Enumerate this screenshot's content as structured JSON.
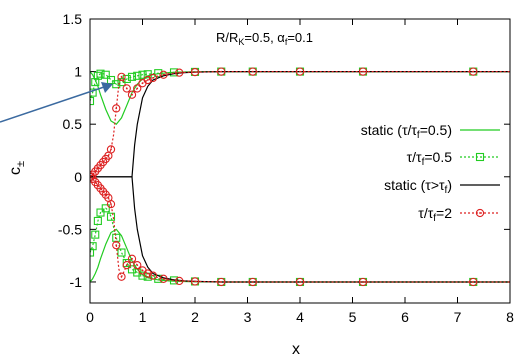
{
  "chart_data": {
    "type": "line",
    "xlabel": "x",
    "ylabel_main": "c",
    "ylabel_sub": "±",
    "xlim": [
      0,
      8
    ],
    "ylim": [
      -1.2,
      1.5
    ],
    "x_ticks": [
      "0",
      "1",
      "2",
      "3",
      "4",
      "5",
      "6",
      "7",
      "8"
    ],
    "y_ticks": [
      "1.5",
      "1",
      "0.5",
      "0",
      "-0.5",
      "-1"
    ],
    "annotation": {
      "prefix": "R/R",
      "sub1": "K",
      "mid": "=0.5, α",
      "sub2": "f",
      "suffix": "=0.1"
    },
    "legend": [
      {
        "main": "static (τ/τ",
        "sub": "f",
        "tail": "=0.5)",
        "color": "#22cc22",
        "style": "solid",
        "marker": "none"
      },
      {
        "main": "τ/τ",
        "sub": "f",
        "tail": "=0.5",
        "color": "#22cc22",
        "style": "dotted",
        "marker": "square"
      },
      {
        "main": "static (τ>τ",
        "sub": "f",
        "tail": ")",
        "color": "#000000",
        "style": "solid",
        "marker": "none"
      },
      {
        "main": "τ/τ",
        "sub": "f",
        "tail": "=2",
        "color": "#dd2222",
        "style": "dotted",
        "marker": "circle"
      }
    ],
    "series": [
      {
        "name": "static (τ/τf=0.5)",
        "color": "#22cc22",
        "x": [
          0,
          0.05,
          0.1,
          0.15,
          0.2,
          0.3,
          0.4,
          0.5,
          0.6,
          0.7,
          0.8,
          0.9,
          1.0,
          1.1,
          1.2,
          1.3,
          1.4,
          1.5,
          1.7,
          2.0,
          2.5,
          3.0,
          4.0,
          5.0,
          6.0,
          7.0,
          8.0
        ],
        "y_upper": [
          1.0,
          0.97,
          0.92,
          0.86,
          0.78,
          0.64,
          0.53,
          0.5,
          0.56,
          0.68,
          0.8,
          0.88,
          0.93,
          0.96,
          0.97,
          0.98,
          0.985,
          0.99,
          0.995,
          0.998,
          1.0,
          1.0,
          1.0,
          1.0,
          1.0,
          1.0,
          1.0
        ],
        "y_lower": [
          -1.0,
          -0.97,
          -0.92,
          -0.86,
          -0.78,
          -0.64,
          -0.53,
          -0.5,
          -0.56,
          -0.68,
          -0.8,
          -0.88,
          -0.93,
          -0.96,
          -0.97,
          -0.98,
          -0.985,
          -0.99,
          -0.995,
          -0.998,
          -1.0,
          -1.0,
          -1.0,
          -1.0,
          -1.0,
          -1.0,
          -1.0
        ]
      },
      {
        "name": "τ/τf=0.5",
        "color": "#22cc22",
        "x": [
          0,
          0.05,
          0.1,
          0.15,
          0.2,
          0.25,
          0.3,
          0.35,
          0.4,
          0.5,
          0.6,
          0.7,
          0.8,
          0.9,
          1.0,
          1.1,
          1.2,
          1.3,
          1.5,
          1.7,
          2.0,
          2.5,
          3.0,
          3.5,
          4.0,
          5.0,
          6.0,
          7.0,
          8.0
        ],
        "y_upper": [
          0.72,
          0.8,
          0.9,
          0.96,
          0.98,
          0.98,
          0.97,
          0.95,
          0.92,
          0.88,
          0.9,
          0.93,
          0.95,
          0.96,
          0.97,
          0.975,
          0.98,
          0.985,
          0.99,
          0.995,
          0.997,
          1.0,
          1.0,
          1.0,
          1.0,
          1.0,
          1.0,
          1.0,
          1.0
        ],
        "y_lower": [
          -0.72,
          -0.66,
          -0.55,
          -0.42,
          -0.34,
          -0.32,
          -0.3,
          -0.32,
          -0.38,
          -0.58,
          -0.72,
          -0.82,
          -0.88,
          -0.91,
          -0.94,
          -0.95,
          -0.96,
          -0.97,
          -0.98,
          -0.99,
          -0.995,
          -1.0,
          -1.0,
          -1.0,
          -1.0,
          -1.0,
          -1.0,
          -1.0,
          -1.0
        ],
        "marker_x": [
          0.0,
          0.05,
          0.1,
          0.15,
          0.2,
          0.3,
          0.4,
          0.5,
          0.6,
          0.7,
          0.8,
          0.9,
          1.0,
          1.1,
          1.3,
          1.6,
          2.0,
          2.5,
          3.1,
          4.0,
          5.2,
          7.3
        ]
      },
      {
        "name": "static (τ>τf)",
        "color": "#000000",
        "x": [
          0,
          0.1,
          0.2,
          0.3,
          0.4,
          0.5,
          0.6,
          0.7,
          0.8,
          0.85,
          0.9,
          1.0,
          1.1,
          1.2,
          1.4,
          1.6,
          1.8,
          2.0,
          2.5,
          3.0,
          4.0,
          5.0,
          6.0,
          7.0,
          8.0
        ],
        "y_upper": [
          0.0,
          0.0,
          0.0,
          0.0,
          0.0,
          0.0,
          0.0,
          0.0,
          0.0,
          0.3,
          0.5,
          0.75,
          0.86,
          0.92,
          0.96,
          0.98,
          0.99,
          0.995,
          1.0,
          1.0,
          1.0,
          1.0,
          1.0,
          1.0,
          1.0
        ],
        "y_lower": [
          0.0,
          0.0,
          0.0,
          0.0,
          0.0,
          0.0,
          0.0,
          0.0,
          0.0,
          -0.3,
          -0.5,
          -0.75,
          -0.86,
          -0.92,
          -0.96,
          -0.98,
          -0.99,
          -0.995,
          -1.0,
          -1.0,
          -1.0,
          -1.0,
          -1.0,
          -1.0,
          -1.0
        ]
      },
      {
        "name": "τ/τf=2",
        "color": "#dd2222",
        "x": [
          0.0,
          0.05,
          0.1,
          0.15,
          0.2,
          0.25,
          0.3,
          0.35,
          0.4,
          0.45,
          0.5,
          0.55,
          0.6,
          0.65,
          0.7,
          0.75,
          0.8,
          0.9,
          1.0,
          1.1,
          1.2,
          1.3,
          1.5,
          1.7,
          2.0,
          2.5,
          3.0,
          4.0,
          5.0,
          6.0,
          7.0,
          8.0
        ],
        "y_upper": [
          0.0,
          0.02,
          0.05,
          0.08,
          0.11,
          0.14,
          0.17,
          0.2,
          0.26,
          0.4,
          0.65,
          0.88,
          0.95,
          0.9,
          0.84,
          0.8,
          0.78,
          0.84,
          0.89,
          0.92,
          0.94,
          0.96,
          0.98,
          0.99,
          0.995,
          1.0,
          1.0,
          1.0,
          1.0,
          1.0,
          1.0,
          1.0
        ],
        "y_lower": [
          0.0,
          -0.02,
          -0.05,
          -0.08,
          -0.11,
          -0.14,
          -0.17,
          -0.2,
          -0.26,
          -0.4,
          -0.65,
          -0.88,
          -0.95,
          -0.9,
          -0.84,
          -0.8,
          -0.78,
          -0.84,
          -0.89,
          -0.92,
          -0.94,
          -0.96,
          -0.98,
          -0.99,
          -0.995,
          -1.0,
          -1.0,
          -1.0,
          -1.0,
          -1.0,
          -1.0,
          -1.0
        ],
        "marker_x": [
          0.0,
          0.05,
          0.1,
          0.15,
          0.2,
          0.25,
          0.3,
          0.35,
          0.4,
          0.5,
          0.6,
          0.7,
          0.8,
          0.9,
          1.0,
          1.1,
          1.2,
          1.4,
          1.7,
          2.0,
          2.5,
          3.1,
          4.0,
          5.2,
          7.3
        ]
      }
    ]
  }
}
